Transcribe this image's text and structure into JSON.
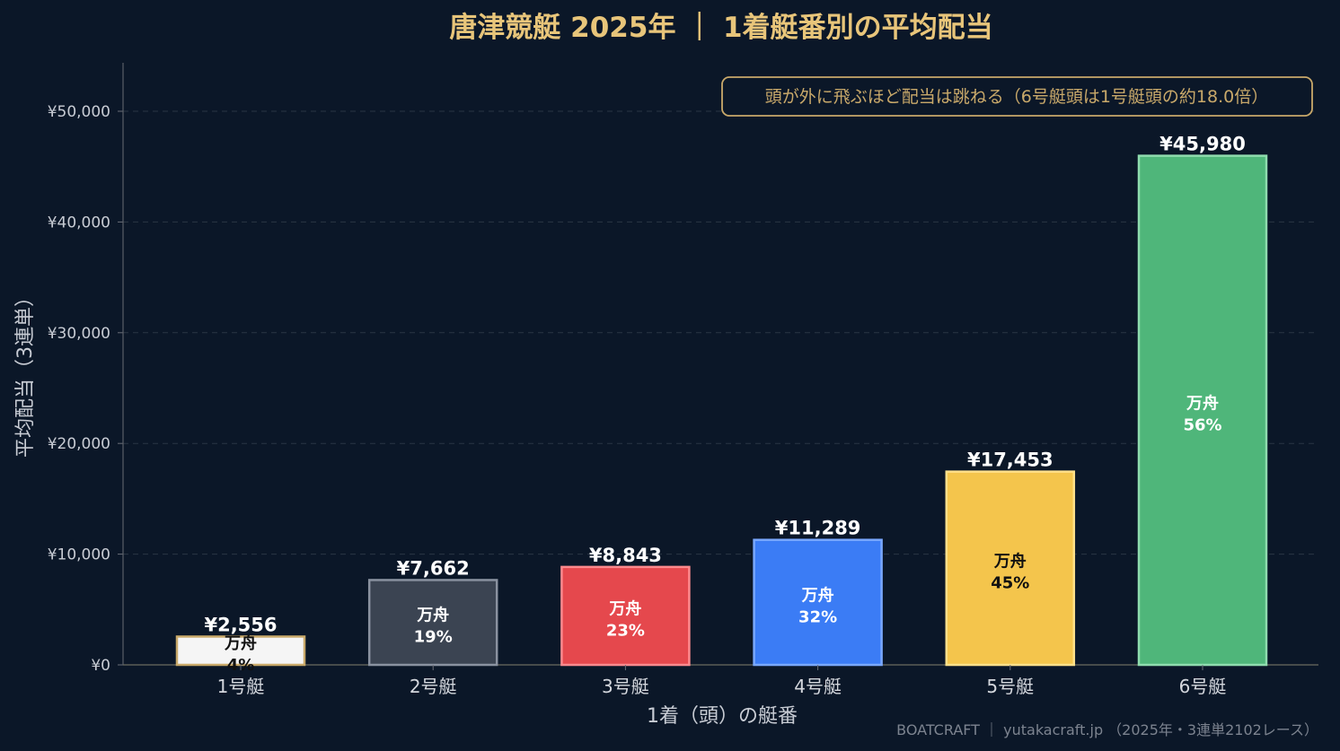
{
  "chart_data": {
    "type": "bar",
    "title": "唐津競艇 2025年 ｜ 1着艇番別の平均配当",
    "xlabel": "1着（頭）の艇番",
    "ylabel": "平均配当（3連単）",
    "ylim": [
      0,
      54000
    ],
    "yticks": [
      0,
      10000,
      20000,
      30000,
      40000,
      50000
    ],
    "ytick_labels": [
      "¥0",
      "¥10,000",
      "¥20,000",
      "¥30,000",
      "¥40,000",
      "¥50,000"
    ],
    "grid": true,
    "categories": [
      "1号艇",
      "2号艇",
      "3号艇",
      "4号艇",
      "5号艇",
      "6号艇"
    ],
    "values": [
      2556,
      7662,
      8843,
      11289,
      17453,
      45980
    ],
    "value_labels": [
      "¥2,556",
      "¥7,662",
      "¥8,843",
      "¥11,289",
      "¥17,453",
      "¥45,980"
    ],
    "inner_label_title": "万舟",
    "manshu_rates": [
      "4%",
      "19%",
      "23%",
      "32%",
      "45%",
      "56%"
    ],
    "bar_colors": [
      "#f5f5f5",
      "#3b4452",
      "#e5484d",
      "#3b7cf5",
      "#f4c54c",
      "#4fb67a"
    ],
    "bar_edge_colors": [
      "#c9a96a",
      "#8a92a0",
      "#ff8a8e",
      "#7aa8ff",
      "#ffe08a",
      "#8fdcae"
    ],
    "inner_text_colors": [
      "#111111",
      "#ffffff",
      "#ffffff",
      "#ffffff",
      "#111111",
      "#ffffff"
    ],
    "annotation": "頭が外に飛ぶほど配当は跳ねる（6号艇頭は1号艇頭の約18.0倍）",
    "credit": "BOATCRAFT ｜ yutakacraft.jp （2025年・3連単2102レース）"
  }
}
